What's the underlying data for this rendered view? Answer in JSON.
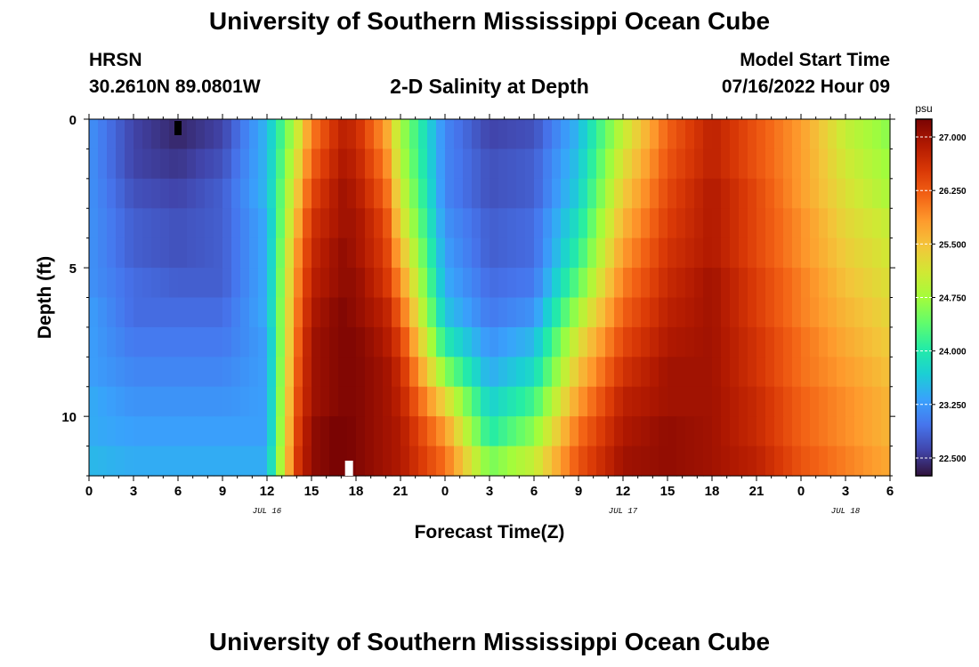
{
  "header": {
    "title": "University of Southern Mississippi Ocean Cube",
    "station": "HRSN",
    "coords": "30.2610N  89.0801W",
    "subtitle": "2-D Salinity at Depth",
    "start_label": "Model Start Time",
    "start_value": "07/16/2022 Hour 09"
  },
  "footer": {
    "title": "University of Southern Mississippi Ocean Cube"
  },
  "colors": {
    "scale": [
      "#30123b",
      "#4145ab",
      "#4675ed",
      "#39a2fc",
      "#1bcfd4",
      "#24eca6",
      "#61fc6c",
      "#a4fc3b",
      "#d1e834",
      "#f3c63a",
      "#fe9b2d",
      "#f36315",
      "#d93806",
      "#b11901",
      "#7a0403"
    ]
  },
  "chart_data": {
    "type": "heatmap",
    "title": "2-D Salinity at Depth",
    "xlabel": "Forecast Time(Z)",
    "ylabel": "Depth (ft)",
    "xlim": [
      0,
      54
    ],
    "ylim": [
      0,
      12
    ],
    "x_ticks": [
      {
        "h": 0,
        "label": "0"
      },
      {
        "h": 3,
        "label": "3"
      },
      {
        "h": 6,
        "label": "6"
      },
      {
        "h": 9,
        "label": "9"
      },
      {
        "h": 12,
        "label": "12"
      },
      {
        "h": 15,
        "label": "15"
      },
      {
        "h": 18,
        "label": "18"
      },
      {
        "h": 21,
        "label": "21"
      },
      {
        "h": 24,
        "label": "0"
      },
      {
        "h": 27,
        "label": "3"
      },
      {
        "h": 30,
        "label": "6"
      },
      {
        "h": 33,
        "label": "9"
      },
      {
        "h": 36,
        "label": "12"
      },
      {
        "h": 39,
        "label": "15"
      },
      {
        "h": 42,
        "label": "18"
      },
      {
        "h": 45,
        "label": "21"
      },
      {
        "h": 48,
        "label": "0"
      },
      {
        "h": 51,
        "label": "3"
      },
      {
        "h": 54,
        "label": "6"
      }
    ],
    "date_labels": [
      {
        "h": 12,
        "label": "JUL 16"
      },
      {
        "h": 36,
        "label": "JUL 17"
      },
      {
        "h": 51,
        "label": "JUL 18"
      }
    ],
    "y_ticks": [
      {
        "d": 0,
        "label": "0"
      },
      {
        "d": 5,
        "label": "5"
      },
      {
        "d": 10,
        "label": "10"
      }
    ],
    "colorbar": {
      "unit": "psu",
      "min": 22.25,
      "max": 27.25,
      "ticks": [
        {
          "v": 22.5,
          "label": "22.500"
        },
        {
          "v": 23.25,
          "label": "23.250"
        },
        {
          "v": 24.0,
          "label": "24.000"
        },
        {
          "v": 24.75,
          "label": "24.750"
        },
        {
          "v": 25.5,
          "label": "25.500"
        },
        {
          "v": 26.25,
          "label": "26.250"
        },
        {
          "v": 27.0,
          "label": "27.000"
        }
      ]
    },
    "rows_depth_ft": [
      0.5,
      1.5,
      2.5,
      3.5,
      4.5,
      5.5,
      6.5,
      7.5,
      8.5,
      9.5,
      10.5,
      11.5
    ],
    "times_h": [
      0,
      3,
      6,
      9,
      12,
      14,
      15,
      17,
      18,
      20,
      21,
      24,
      27,
      30,
      33,
      36,
      39,
      42,
      45,
      48,
      51,
      54
    ],
    "salinity_psu": [
      [
        23.2,
        22.6,
        22.4,
        22.6,
        23.5,
        25.0,
        26.0,
        26.8,
        26.7,
        25.8,
        24.8,
        23.1,
        22.6,
        22.7,
        23.5,
        25.0,
        26.2,
        26.8,
        26.3,
        25.8,
        25.0,
        24.6
      ],
      [
        23.2,
        22.6,
        22.5,
        22.7,
        23.5,
        25.2,
        26.2,
        26.9,
        26.8,
        26.0,
        24.9,
        23.1,
        22.7,
        22.8,
        23.6,
        25.2,
        26.3,
        26.8,
        26.3,
        25.8,
        25.1,
        24.7
      ],
      [
        23.2,
        22.7,
        22.6,
        22.8,
        23.5,
        25.4,
        26.4,
        27.0,
        26.9,
        26.2,
        25.1,
        23.1,
        22.7,
        22.8,
        23.7,
        25.4,
        26.4,
        26.9,
        26.4,
        25.8,
        25.2,
        24.8
      ],
      [
        23.2,
        22.8,
        22.7,
        22.8,
        23.4,
        25.6,
        26.6,
        27.0,
        27.0,
        26.4,
        25.3,
        23.2,
        22.8,
        22.9,
        23.9,
        25.6,
        26.5,
        26.9,
        26.4,
        25.9,
        25.3,
        25.0
      ],
      [
        23.2,
        22.8,
        22.7,
        22.8,
        23.4,
        25.8,
        26.7,
        27.1,
        27.0,
        26.5,
        25.6,
        23.3,
        22.8,
        22.9,
        24.1,
        25.8,
        26.6,
        26.9,
        26.4,
        25.9,
        25.4,
        25.1
      ],
      [
        23.2,
        22.9,
        22.8,
        22.8,
        23.4,
        25.9,
        26.8,
        27.1,
        27.1,
        26.6,
        25.9,
        23.4,
        22.9,
        23.0,
        24.4,
        26.0,
        26.7,
        27.0,
        26.5,
        26.0,
        25.5,
        25.2
      ],
      [
        23.3,
        22.9,
        22.9,
        22.9,
        23.4,
        26.0,
        26.9,
        27.2,
        27.1,
        26.8,
        26.2,
        23.6,
        23.0,
        23.2,
        24.8,
        26.2,
        26.8,
        27.0,
        26.5,
        26.0,
        25.6,
        25.3
      ],
      [
        23.3,
        23.0,
        23.0,
        23.0,
        23.3,
        26.1,
        27.0,
        27.2,
        27.2,
        26.9,
        26.5,
        24.0,
        23.2,
        23.5,
        25.2,
        26.4,
        26.9,
        27.0,
        26.6,
        26.1,
        25.7,
        25.4
      ],
      [
        23.3,
        23.1,
        23.1,
        23.1,
        23.3,
        26.2,
        27.0,
        27.2,
        27.2,
        27.0,
        26.7,
        24.6,
        23.4,
        23.8,
        25.5,
        26.6,
        27.0,
        27.0,
        26.6,
        26.1,
        25.8,
        25.5
      ],
      [
        23.4,
        23.2,
        23.2,
        23.2,
        23.3,
        26.3,
        27.0,
        27.2,
        27.2,
        27.0,
        26.8,
        25.3,
        23.7,
        24.2,
        25.8,
        26.8,
        27.0,
        27.0,
        26.7,
        26.2,
        25.9,
        25.6
      ],
      [
        23.4,
        23.3,
        23.3,
        23.3,
        23.3,
        26.4,
        27.1,
        27.3,
        27.2,
        27.0,
        26.9,
        25.8,
        24.0,
        24.6,
        26.1,
        26.9,
        27.1,
        27.0,
        26.7,
        26.2,
        25.9,
        25.6
      ],
      [
        23.5,
        23.4,
        23.4,
        23.4,
        23.4,
        26.5,
        27.1,
        27.3,
        27.2,
        27.0,
        26.9,
        26.1,
        24.5,
        25.0,
        26.3,
        27.0,
        27.1,
        27.0,
        26.8,
        26.3,
        26.0,
        25.7
      ]
    ]
  }
}
